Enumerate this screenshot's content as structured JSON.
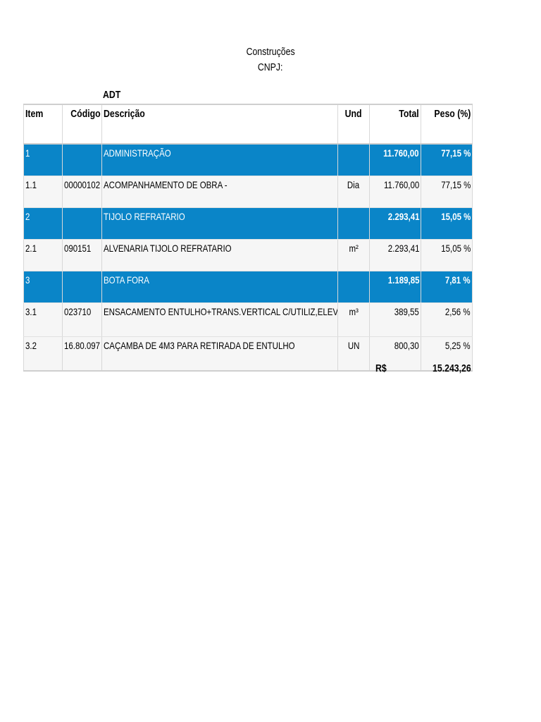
{
  "header": {
    "company": "Construções",
    "cnpj": "CNPJ:",
    "title": "ADT"
  },
  "table": {
    "columns": [
      "Item",
      "Código",
      "Descrição",
      "Und",
      "Total",
      "Peso (%)"
    ],
    "rows": [
      {
        "type": "group",
        "item": "1",
        "code": "",
        "description": "ADMINISTRAÇÃO",
        "unit": "",
        "total": "11.760,00",
        "weight": "77,15 %"
      },
      {
        "type": "sub",
        "item": "1.1",
        "code": "00000102",
        "description": "ACOMPANHAMENTO DE OBRA -",
        "unit": "Dia",
        "total": "11.760,00",
        "weight": "77,15 %"
      },
      {
        "type": "group",
        "item": "2",
        "code": "",
        "description": "TIJOLO REFRATARIO",
        "unit": "",
        "total": "2.293,41",
        "weight": "15,05 %"
      },
      {
        "type": "sub",
        "item": "2.1",
        "code": "090151",
        "description": "ALVENARIA TIJOLO REFRATARIO",
        "unit": "m²",
        "total": "2.293,41",
        "weight": "15,05 %"
      },
      {
        "type": "group",
        "item": "3",
        "code": "",
        "description": "BOTA FORA",
        "unit": "",
        "total": "1.189,85",
        "weight": "7,81 %"
      },
      {
        "type": "sub",
        "item": "3.1",
        "code": "023710",
        "description": "ENSACAMENTO ENTULHO+TRANS.VERTICAL C/UTILIZ,ELEVADOR",
        "unit": "m³",
        "total": "389,55",
        "weight": "2,56 %"
      },
      {
        "type": "sub",
        "item": "3.2",
        "code": "16.80.097",
        "description": "CAÇAMBA DE 4M3 PARA RETIRADA DE ENTULHO",
        "unit": "UN",
        "total": "800,30",
        "weight": "5,25 %"
      }
    ]
  },
  "footer": {
    "currency_label": "R$",
    "grand_total": "15.243,26"
  },
  "colors": {
    "group_row_bg": "#0a85c8",
    "sub_row_bg": "#f6f6f6"
  }
}
